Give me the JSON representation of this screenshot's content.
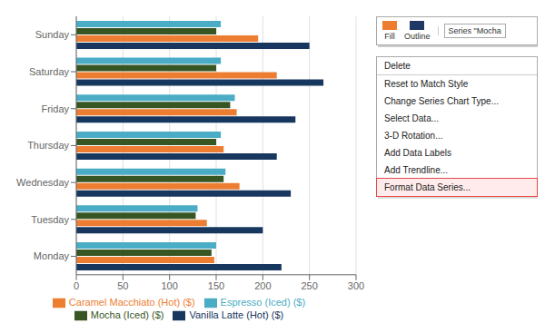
{
  "chart_data": {
    "type": "bar",
    "orientation": "horizontal",
    "categories": [
      "Monday",
      "Tuesday",
      "Wednesday",
      "Thursday",
      "Friday",
      "Saturday",
      "Sunday"
    ],
    "series": [
      {
        "name": "Espresso (Iced) ($)",
        "color": "#4BACC6",
        "values": [
          150,
          130,
          160,
          155,
          170,
          155,
          155
        ]
      },
      {
        "name": "Mocha (Iced) ($)",
        "color": "#375623",
        "values": [
          145,
          128,
          158,
          150,
          165,
          150,
          150
        ]
      },
      {
        "name": "Caramel Macchiato (Hot) ($)",
        "color": "#ED7D31",
        "values": [
          148,
          140,
          175,
          158,
          172,
          215,
          195
        ]
      },
      {
        "name": "Vanilla Latte (Hot) ($)",
        "color": "#17375E",
        "values": [
          220,
          200,
          230,
          215,
          235,
          265,
          250
        ]
      }
    ],
    "xlim": [
      0,
      300
    ],
    "xticks": [
      0,
      50,
      100,
      150,
      200,
      250,
      300
    ],
    "grid": true,
    "legend": "bottom",
    "annotations": [
      "Fill",
      "Outline",
      "Series \"Mocha",
      "Delete",
      "Reset to Match Style",
      "Change Series Chart Type...",
      "Select Data...",
      "3-D Rotation...",
      "Add Data Labels",
      "Add Trendline...",
      "Format Data Series..."
    ]
  }
}
